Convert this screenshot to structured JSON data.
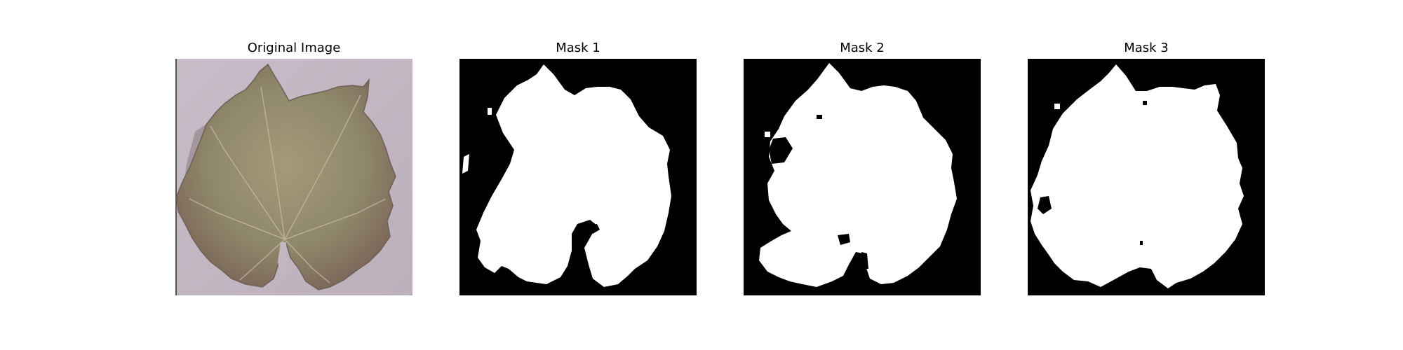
{
  "panels": [
    {
      "title": "Original Image"
    },
    {
      "title": "Mask 1"
    },
    {
      "title": "Mask 2"
    },
    {
      "title": "Mask 3"
    }
  ],
  "colors": {
    "background_backdrop": "#c3b7c2",
    "leaf_fill": "#8f876a",
    "leaf_shadow": "#6f5f58",
    "mask_background": "#000000",
    "mask_foreground": "#ffffff"
  }
}
